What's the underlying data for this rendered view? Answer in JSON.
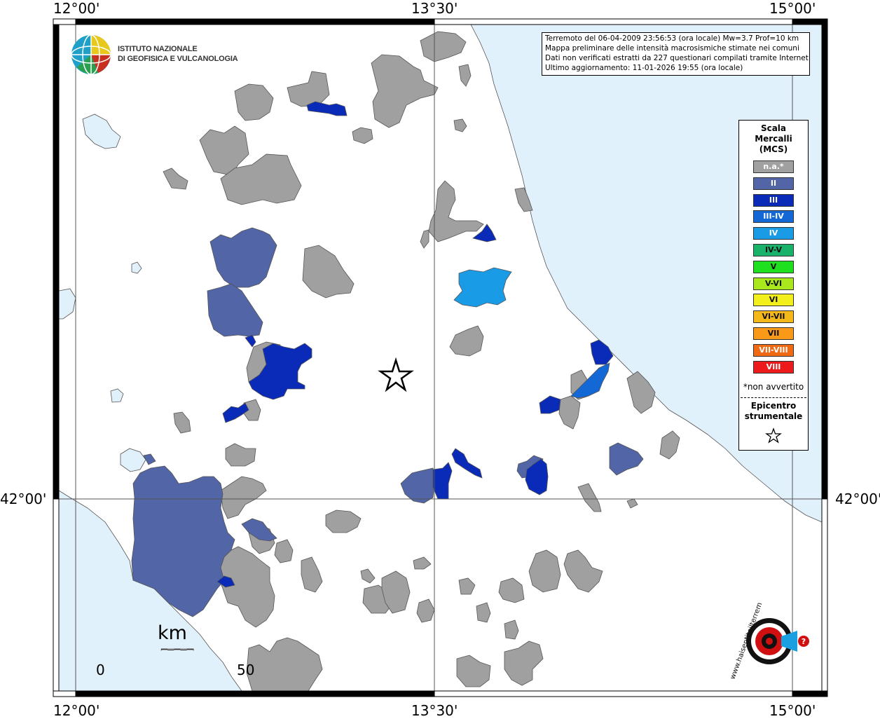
{
  "title_box": {
    "line1": "Terremoto del 06-04-2009 23:56:53 (ora locale) Mw=3.7 Prof=10 km",
    "line2": "Mappa preliminare delle intensità macrosismiche stimate nei comuni",
    "line3": "Dati non verificati estratti da 227 questionari compilati tramite Internet.",
    "line4": "Ultimo aggiornamento: 11-01-2026 19:55 (ora locale)"
  },
  "coords": {
    "lon_left": "12°00'",
    "lon_mid": "13°30'",
    "lon_right": "15°00'",
    "lat_mid": "42°00'"
  },
  "institute": {
    "line1": "ISTITUTO NAZIONALE",
    "line2": "DI GEOFISICA E VULCANOLOGIA"
  },
  "legend": {
    "title": [
      "Scala",
      "Mercalli",
      "(MCS)"
    ],
    "items": [
      {
        "label": "n.a.*",
        "color": "#a0a0a0"
      },
      {
        "label": "II",
        "color": "#5165a7"
      },
      {
        "label": "III",
        "color": "#0a2bb8"
      },
      {
        "label": "III-IV",
        "color": "#1368d6"
      },
      {
        "label": "IV",
        "color": "#1a9be6"
      },
      {
        "label": "IV-V",
        "color": "#19b26a"
      },
      {
        "label": "V",
        "color": "#1ee01e"
      },
      {
        "label": "V-VI",
        "color": "#a8e81c"
      },
      {
        "label": "VI",
        "color": "#f2ef1a"
      },
      {
        "label": "VI-VII",
        "color": "#f5b81a"
      },
      {
        "label": "VII",
        "color": "#f89a18"
      },
      {
        "label": "VII-VIII",
        "color": "#f06a14"
      },
      {
        "label": "VIII",
        "color": "#ec1a1a"
      }
    ],
    "note": "*non avvertito",
    "epicenter_line1": "Epicentro",
    "epicenter_line2": "strumentale"
  },
  "scale": {
    "unit": "km",
    "start": "0",
    "end": "50"
  },
  "colors": {
    "sea": "#e1f1fb",
    "na": "#a0a0a0",
    "ii": "#5165a7",
    "iii": "#0a2bb8",
    "iii_iv": "#1368d6",
    "iv": "#1a9be6"
  },
  "hs_logo": {
    "text": "www.haisentitoilterremoto.it"
  }
}
